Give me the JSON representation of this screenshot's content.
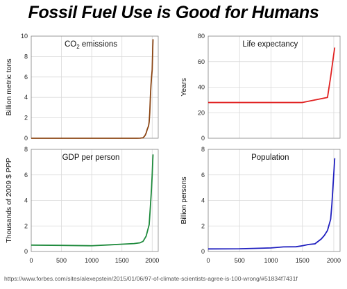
{
  "title": "Fossil Fuel Use is Good for Humans",
  "source": "https://www.forbes.com/sites/alexepstein/2015/01/06/97-of-climate-scientists-agree-is-100-wrong/#51834f7431f",
  "chart_data": [
    {
      "type": "line",
      "title_prefix": "CO",
      "title_sub": "2",
      "title_suffix": " emissions",
      "ylabel": "Billion metric tons",
      "xlabel": "",
      "xlim": [
        0,
        2100
      ],
      "ylim": [
        0,
        10
      ],
      "xticks": [],
      "yticks": [
        0,
        2,
        4,
        6,
        8,
        10
      ],
      "grid": true,
      "color": "#8B4513",
      "x": [
        0,
        1750,
        1800,
        1850,
        1880,
        1900,
        1920,
        1940,
        1950,
        1960,
        1970,
        1980,
        1990,
        2000,
        2010,
        2014
      ],
      "y": [
        0,
        0,
        0.01,
        0.05,
        0.25,
        0.5,
        0.9,
        1.2,
        1.6,
        2.5,
        4.0,
        5.2,
        6.0,
        6.7,
        9.0,
        9.7
      ]
    },
    {
      "type": "line",
      "title": "Life expectancy",
      "ylabel": "Years",
      "xlabel": "",
      "xlim": [
        0,
        2100
      ],
      "ylim": [
        0,
        80
      ],
      "xticks": [],
      "yticks": [
        0,
        20,
        40,
        60,
        80
      ],
      "grid": true,
      "color": "#E02020",
      "x": [
        0,
        1500,
        1900,
        1950,
        2000,
        2015
      ],
      "y": [
        28,
        28,
        32,
        48,
        66,
        71
      ]
    },
    {
      "type": "line",
      "title": "GDP per person",
      "ylabel": "Thousands of 2009 $ PPP",
      "xlabel": "",
      "xlim": [
        0,
        2100
      ],
      "ylim": [
        0,
        8
      ],
      "xticks": [
        0,
        500,
        1000,
        1500,
        2000
      ],
      "yticks": [
        0,
        2,
        4,
        6,
        8
      ],
      "grid": true,
      "color": "#1E8A3C",
      "x": [
        0,
        500,
        1000,
        1300,
        1500,
        1700,
        1800,
        1850,
        1900,
        1950,
        1970,
        1990,
        2000,
        2010,
        2014
      ],
      "y": [
        0.5,
        0.48,
        0.45,
        0.52,
        0.57,
        0.62,
        0.68,
        0.8,
        1.2,
        2.1,
        3.5,
        5.0,
        6.0,
        7.2,
        7.6
      ]
    },
    {
      "type": "line",
      "title": "Population",
      "ylabel": "Billion persons",
      "xlabel": "",
      "xlim": [
        0,
        2100
      ],
      "ylim": [
        0,
        8
      ],
      "xticks": [
        0,
        500,
        1000,
        1500,
        2000
      ],
      "yticks": [
        0,
        2,
        4,
        6,
        8
      ],
      "grid": true,
      "color": "#1F1FBF",
      "x": [
        0,
        500,
        1000,
        1200,
        1400,
        1500,
        1600,
        1700,
        1800,
        1850,
        1900,
        1950,
        1970,
        1990,
        2000,
        2010,
        2015
      ],
      "y": [
        0.2,
        0.21,
        0.28,
        0.36,
        0.37,
        0.45,
        0.55,
        0.6,
        0.98,
        1.26,
        1.65,
        2.52,
        3.7,
        5.3,
        6.1,
        6.9,
        7.3
      ]
    }
  ]
}
